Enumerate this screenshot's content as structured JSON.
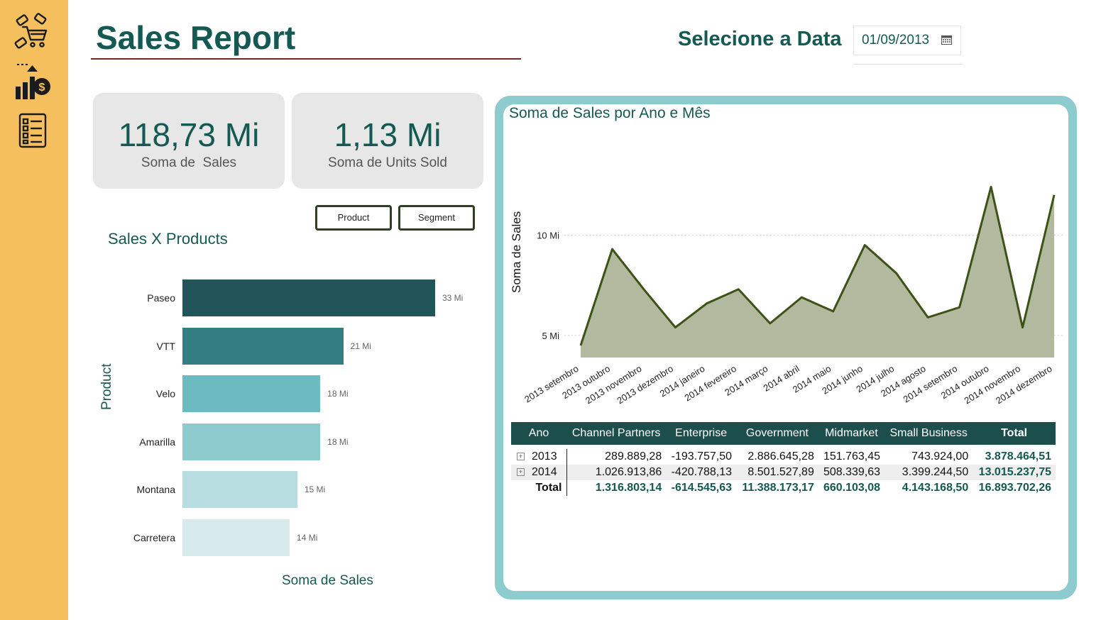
{
  "header": {
    "title": "Sales Report",
    "date_label": "Selecione a Data",
    "date_value": "01/09/2013"
  },
  "sidebar": {
    "items": [
      {
        "icon": "shopping-cart-icon"
      },
      {
        "icon": "sales-growth-icon"
      },
      {
        "icon": "report-list-icon"
      }
    ]
  },
  "kpis": [
    {
      "value": "118,73 Mi",
      "label": "Soma de  Sales"
    },
    {
      "value": "1,13 Mi",
      "label": "Soma de Units Sold"
    }
  ],
  "slicers": {
    "product_label": "Product",
    "segment_label": "Segment"
  },
  "colors": {
    "accent": "#145a52",
    "sidebar": "#f5bf5e",
    "panel": "#8ecbcf",
    "line": "#3d5216",
    "area": "#b1b99f"
  },
  "chart_data": [
    {
      "type": "bar",
      "title": "Sales X Products",
      "xlabel": "Soma de Sales",
      "ylabel": "Product",
      "categories": [
        "Paseo",
        "VTT",
        "Velo",
        "Amarilla",
        "Montana",
        "Carretera"
      ],
      "values": [
        33,
        21,
        18,
        18,
        15,
        14
      ],
      "value_labels": [
        "33 Mi",
        "21 Mi",
        "18 Mi",
        "18 Mi",
        "15 Mi",
        "14 Mi"
      ],
      "colors": [
        "#22555a",
        "#337d83",
        "#6dbac0",
        "#8ecbcf",
        "#b7dde0",
        "#d8ebec"
      ],
      "unit": "Mi"
    },
    {
      "type": "area",
      "title": "Soma de Sales por Ano e Mês",
      "xlabel": "",
      "ylabel": "Soma de Sales",
      "categories": [
        "2013 setembro",
        "2013 outubro",
        "2013 novembro",
        "2013 dezembro",
        "2014 janeiro",
        "2014 fevereiro",
        "2014 março",
        "2014 abril",
        "2014 maio",
        "2014 junho",
        "2014 julho",
        "2014 agosto",
        "2014 setembro",
        "2014 outubro",
        "2014 novembro",
        "2014 dezembro"
      ],
      "values": [
        4.5,
        9.3,
        7.3,
        5.4,
        6.6,
        7.3,
        5.6,
        6.9,
        6.2,
        9.5,
        8.1,
        5.9,
        6.4,
        12.4,
        5.4,
        12.0
      ],
      "y_ticks": [
        5,
        10
      ],
      "y_tick_labels": [
        "5 Mi",
        "10 Mi"
      ],
      "ylim": [
        3.9,
        13.3
      ],
      "grid": true
    }
  ],
  "matrix": {
    "columns": [
      "Ano",
      "Channel Partners",
      "Enterprise",
      "Government",
      "Midmarket",
      "Small Business",
      "Total"
    ],
    "rows": [
      {
        "ano": "2013",
        "cells": [
          "289.889,28",
          "-193.757,50",
          "2.886.645,28",
          "151.763,45",
          "743.924,00",
          "3.878.464,51"
        ]
      },
      {
        "ano": "2014",
        "cells": [
          "1.026.913,86",
          "-420.788,13",
          "8.501.527,89",
          "508.339,63",
          "3.399.244,50",
          "13.015.237,75"
        ]
      }
    ],
    "total": {
      "ano": "Total",
      "cells": [
        "1.316.803,14",
        "-614.545,63",
        "11.388.173,17",
        "660.103,08",
        "4.143.168,50",
        "16.893.702,26"
      ]
    }
  }
}
